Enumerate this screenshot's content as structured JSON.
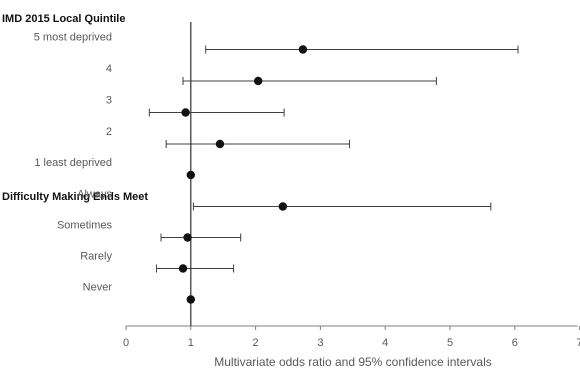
{
  "chart_data": {
    "type": "forest",
    "xlabel": "Multivariate odds ratio and 95% confidence intervals",
    "xlim": [
      0,
      7
    ],
    "xticks": [
      "0",
      "1",
      "2",
      "3",
      "4",
      "5",
      "6",
      "7"
    ],
    "reference_line": 1,
    "sections": [
      {
        "heading": "IMD 2015 Local Quintile",
        "rows": [
          {
            "label": "5 most deprived",
            "or": 2.73,
            "lo": 1.23,
            "hi": 6.05
          },
          {
            "label": "4",
            "or": 2.04,
            "lo": 0.88,
            "hi": 4.79
          },
          {
            "label": "3",
            "or": 0.92,
            "lo": 0.36,
            "hi": 2.44
          },
          {
            "label": "2",
            "or": 1.45,
            "lo": 0.62,
            "hi": 3.45
          },
          {
            "label": "1 least deprived",
            "or": 1.0,
            "lo": null,
            "hi": null
          }
        ]
      },
      {
        "heading": "Difficulty Making Ends Meet",
        "rows": [
          {
            "label": "Always",
            "or": 2.42,
            "lo": 1.04,
            "hi": 5.63
          },
          {
            "label": "Sometimes",
            "or": 0.95,
            "lo": 0.54,
            "hi": 1.77
          },
          {
            "label": "Rarely",
            "or": 0.88,
            "lo": 0.47,
            "hi": 1.66
          },
          {
            "label": "Never",
            "or": 1.0,
            "lo": null,
            "hi": null
          }
        ]
      }
    ]
  }
}
